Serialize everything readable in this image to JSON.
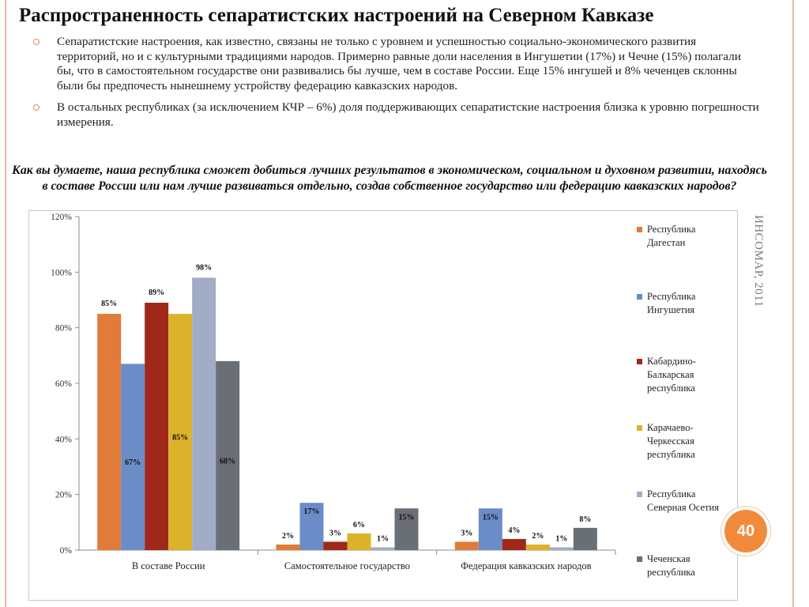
{
  "slide": {
    "title": "Распространенность сепаратистских настроений на Северном Кавказе",
    "bullets": [
      "Сепаратистские настроения, как известно, связаны не только с уровнем и успешностью социально-экономического развития территорий, но и с культурными традициями народов. Примерно равные доли населения в Ингушетии (17%) и Чечне (15%) полагали бы, что в самостоятельном государстве они развивались бы лучше, чем в составе России. Еще 15% ингушей и 8% чеченцев склонны были бы предпочесть нынешнему устройству федерацию кавказских народов.",
      "В остальных республиках (за исключением КЧР – 6%) доля поддерживающих сепаратистские настроения близка к уровню погрешности измерения."
    ],
    "question": "Как вы думаете, наша республика сможет добиться лучших результатов в экономическом, социальном и духовном развитии, находясь в составе России или нам лучше развиваться отдельно, создав собственное государство или федерацию кавказских народов?",
    "source_note": "ИНСОМАР, 2011",
    "page_number": "40",
    "bullet_icon": "ring-bullet-icon",
    "accent_color": "#f28a3c"
  },
  "chart_data": {
    "type": "bar",
    "title": "",
    "xlabel": "",
    "ylabel": "",
    "ylim": [
      0,
      120
    ],
    "yticks": [
      0,
      20,
      40,
      60,
      80,
      100,
      120
    ],
    "ytick_labels": [
      "0%",
      "20%",
      "40%",
      "60%",
      "80%",
      "100%",
      "120%"
    ],
    "grid": false,
    "legend_position": "right",
    "categories": [
      "В составе России",
      "Самостоятельное государство",
      "Федерация кавказских народов"
    ],
    "series": [
      {
        "name": "Республика Дагестан",
        "color": "#e07b39",
        "values": [
          85,
          2,
          3
        ],
        "labels": [
          "85%",
          "2%",
          "3%"
        ]
      },
      {
        "name": "Республика Ингушетия",
        "color": "#6b8cc7",
        "values": [
          67,
          17,
          15
        ],
        "labels": [
          "67%",
          "17%",
          "15%"
        ]
      },
      {
        "name": "Кабардино-Балкарская республика",
        "color": "#a0281a",
        "values": [
          89,
          3,
          4
        ],
        "labels": [
          "89%",
          "3%",
          "4%"
        ]
      },
      {
        "name": "Карачаево-Черкесская республика",
        "color": "#dcb22c",
        "values": [
          85,
          6,
          2
        ],
        "labels": [
          "85%",
          "6%",
          "2%"
        ]
      },
      {
        "name": "Республика Северная Осетия",
        "color": "#a2acc6",
        "values": [
          98,
          1,
          1
        ],
        "labels": [
          "98%",
          "1%",
          "1%"
        ]
      },
      {
        "name": "Чеченская республика",
        "color": "#6a6e75",
        "values": [
          68,
          15,
          8
        ],
        "labels": [
          "68%",
          "15%",
          "8%"
        ]
      }
    ]
  }
}
